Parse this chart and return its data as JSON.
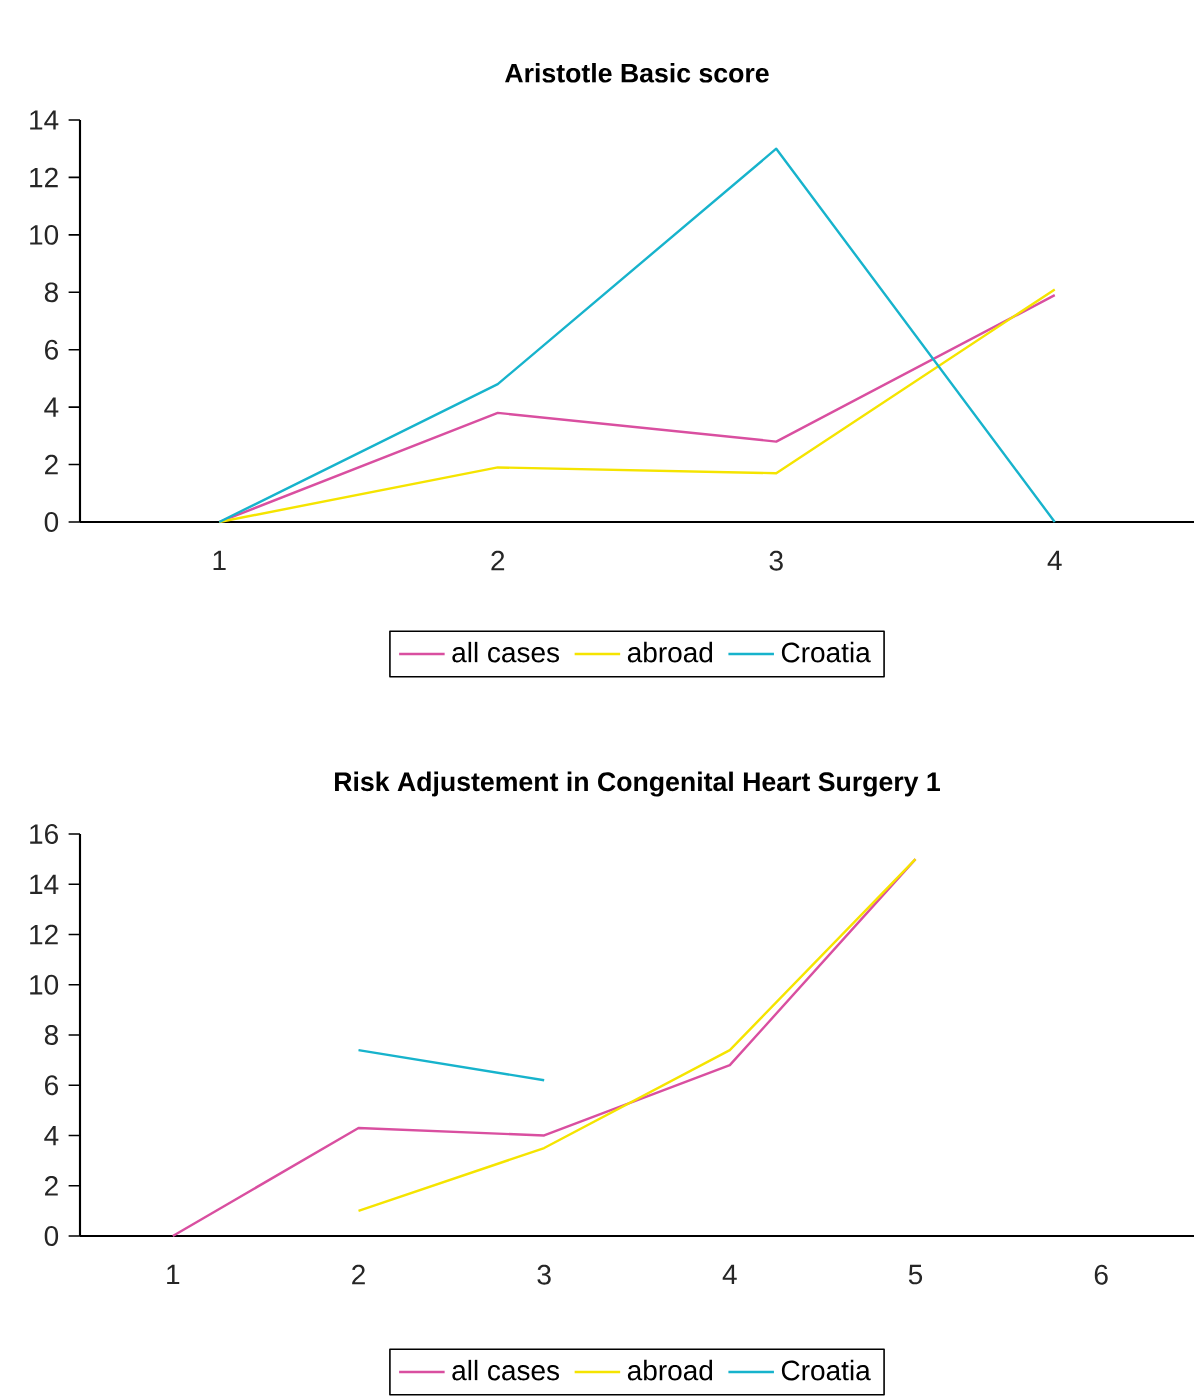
{
  "chart_data": [
    {
      "type": "line",
      "title": "Aristotle Basic score",
      "categories": [
        "1",
        "2",
        "3",
        "4"
      ],
      "ylim": [
        0,
        14
      ],
      "yticks": [
        0,
        2,
        4,
        6,
        8,
        10,
        12,
        14
      ],
      "legend": "bottom",
      "series": [
        {
          "name": "all cases",
          "color": "#d94fa0",
          "values": [
            0,
            3.8,
            2.8,
            7.9
          ]
        },
        {
          "name": "abroad",
          "color": "#f5e400",
          "values": [
            0,
            1.9,
            1.7,
            8.1
          ]
        },
        {
          "name": "Croatia",
          "color": "#17b3cc",
          "values": [
            0,
            4.8,
            13,
            0
          ]
        }
      ]
    },
    {
      "type": "line",
      "title": "Risk Adjustement in Congenital Heart Surgery 1",
      "categories": [
        "1",
        "2",
        "3",
        "4",
        "5",
        "6"
      ],
      "ylim": [
        0,
        16
      ],
      "yticks": [
        0,
        2,
        4,
        6,
        8,
        10,
        12,
        14,
        16
      ],
      "legend": "bottom",
      "series": [
        {
          "name": "all cases",
          "color": "#d94fa0",
          "values": [
            0,
            4.3,
            4.0,
            6.8,
            15,
            null
          ]
        },
        {
          "name": "abroad",
          "color": "#f5e400",
          "values": [
            null,
            1.0,
            3.5,
            7.4,
            15,
            null
          ]
        },
        {
          "name": "Croatia",
          "color": "#17b3cc",
          "values": [
            null,
            7.4,
            6.2,
            null,
            null,
            null
          ]
        }
      ]
    }
  ]
}
